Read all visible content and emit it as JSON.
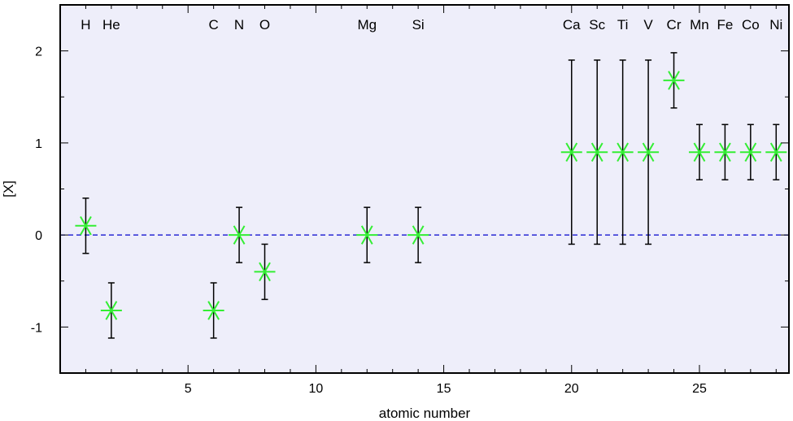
{
  "chart_data": {
    "type": "scatter",
    "xlabel": "atomic number",
    "ylabel": "[X]",
    "xlim": [
      0,
      28.5
    ],
    "ylim": [
      -1.5,
      2.5
    ],
    "x_ticks": [
      5,
      10,
      15,
      20,
      25
    ],
    "y_ticks": [
      -1,
      0,
      1,
      2
    ],
    "grid": false,
    "reference_line": {
      "y": 0,
      "style": "dashed",
      "color": "#0000cc"
    },
    "marker": "asterisk",
    "marker_color": "#33ee33",
    "plot_background": "#eeeefa",
    "points": [
      {
        "element": "H",
        "x": 1,
        "y": 0.1,
        "err_low": 0.3,
        "err_high": 0.3
      },
      {
        "element": "He",
        "x": 2,
        "y": -0.82,
        "err_low": 0.3,
        "err_high": 0.3
      },
      {
        "element": "C",
        "x": 6,
        "y": -0.82,
        "err_low": 0.3,
        "err_high": 0.3
      },
      {
        "element": "N",
        "x": 7,
        "y": 0.0,
        "err_low": 0.3,
        "err_high": 0.3
      },
      {
        "element": "O",
        "x": 8,
        "y": -0.4,
        "err_low": 0.3,
        "err_high": 0.3
      },
      {
        "element": "Mg",
        "x": 12,
        "y": 0.0,
        "err_low": 0.3,
        "err_high": 0.3
      },
      {
        "element": "Si",
        "x": 14,
        "y": 0.0,
        "err_low": 0.3,
        "err_high": 0.3
      },
      {
        "element": "Ca",
        "x": 20,
        "y": 0.9,
        "err_low": 1.0,
        "err_high": 1.0
      },
      {
        "element": "Sc",
        "x": 21,
        "y": 0.9,
        "err_low": 1.0,
        "err_high": 1.0
      },
      {
        "element": "Ti",
        "x": 22,
        "y": 0.9,
        "err_low": 1.0,
        "err_high": 1.0
      },
      {
        "element": "V",
        "x": 23,
        "y": 0.9,
        "err_low": 1.0,
        "err_high": 1.0
      },
      {
        "element": "Cr",
        "x": 24,
        "y": 1.68,
        "err_low": 0.3,
        "err_high": 0.3
      },
      {
        "element": "Mn",
        "x": 25,
        "y": 0.9,
        "err_low": 0.3,
        "err_high": 0.3
      },
      {
        "element": "Fe",
        "x": 26,
        "y": 0.9,
        "err_low": 0.3,
        "err_high": 0.3
      },
      {
        "element": "Co",
        "x": 27,
        "y": 0.9,
        "err_low": 0.3,
        "err_high": 0.3
      },
      {
        "element": "Ni",
        "x": 28,
        "y": 0.9,
        "err_low": 0.3,
        "err_high": 0.3
      }
    ]
  }
}
